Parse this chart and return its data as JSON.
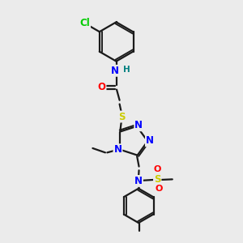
{
  "bg_color": "#ebebeb",
  "bond_color": "#1a1a1a",
  "bond_width": 1.6,
  "atom_colors": {
    "Cl": "#00cc00",
    "N": "#0000ff",
    "O": "#ff0000",
    "S": "#cccc00",
    "H": "#008080",
    "C": "#1a1a1a"
  },
  "font_size": 8.5,
  "fig_width": 3.0,
  "fig_height": 3.0,
  "dpi": 100
}
